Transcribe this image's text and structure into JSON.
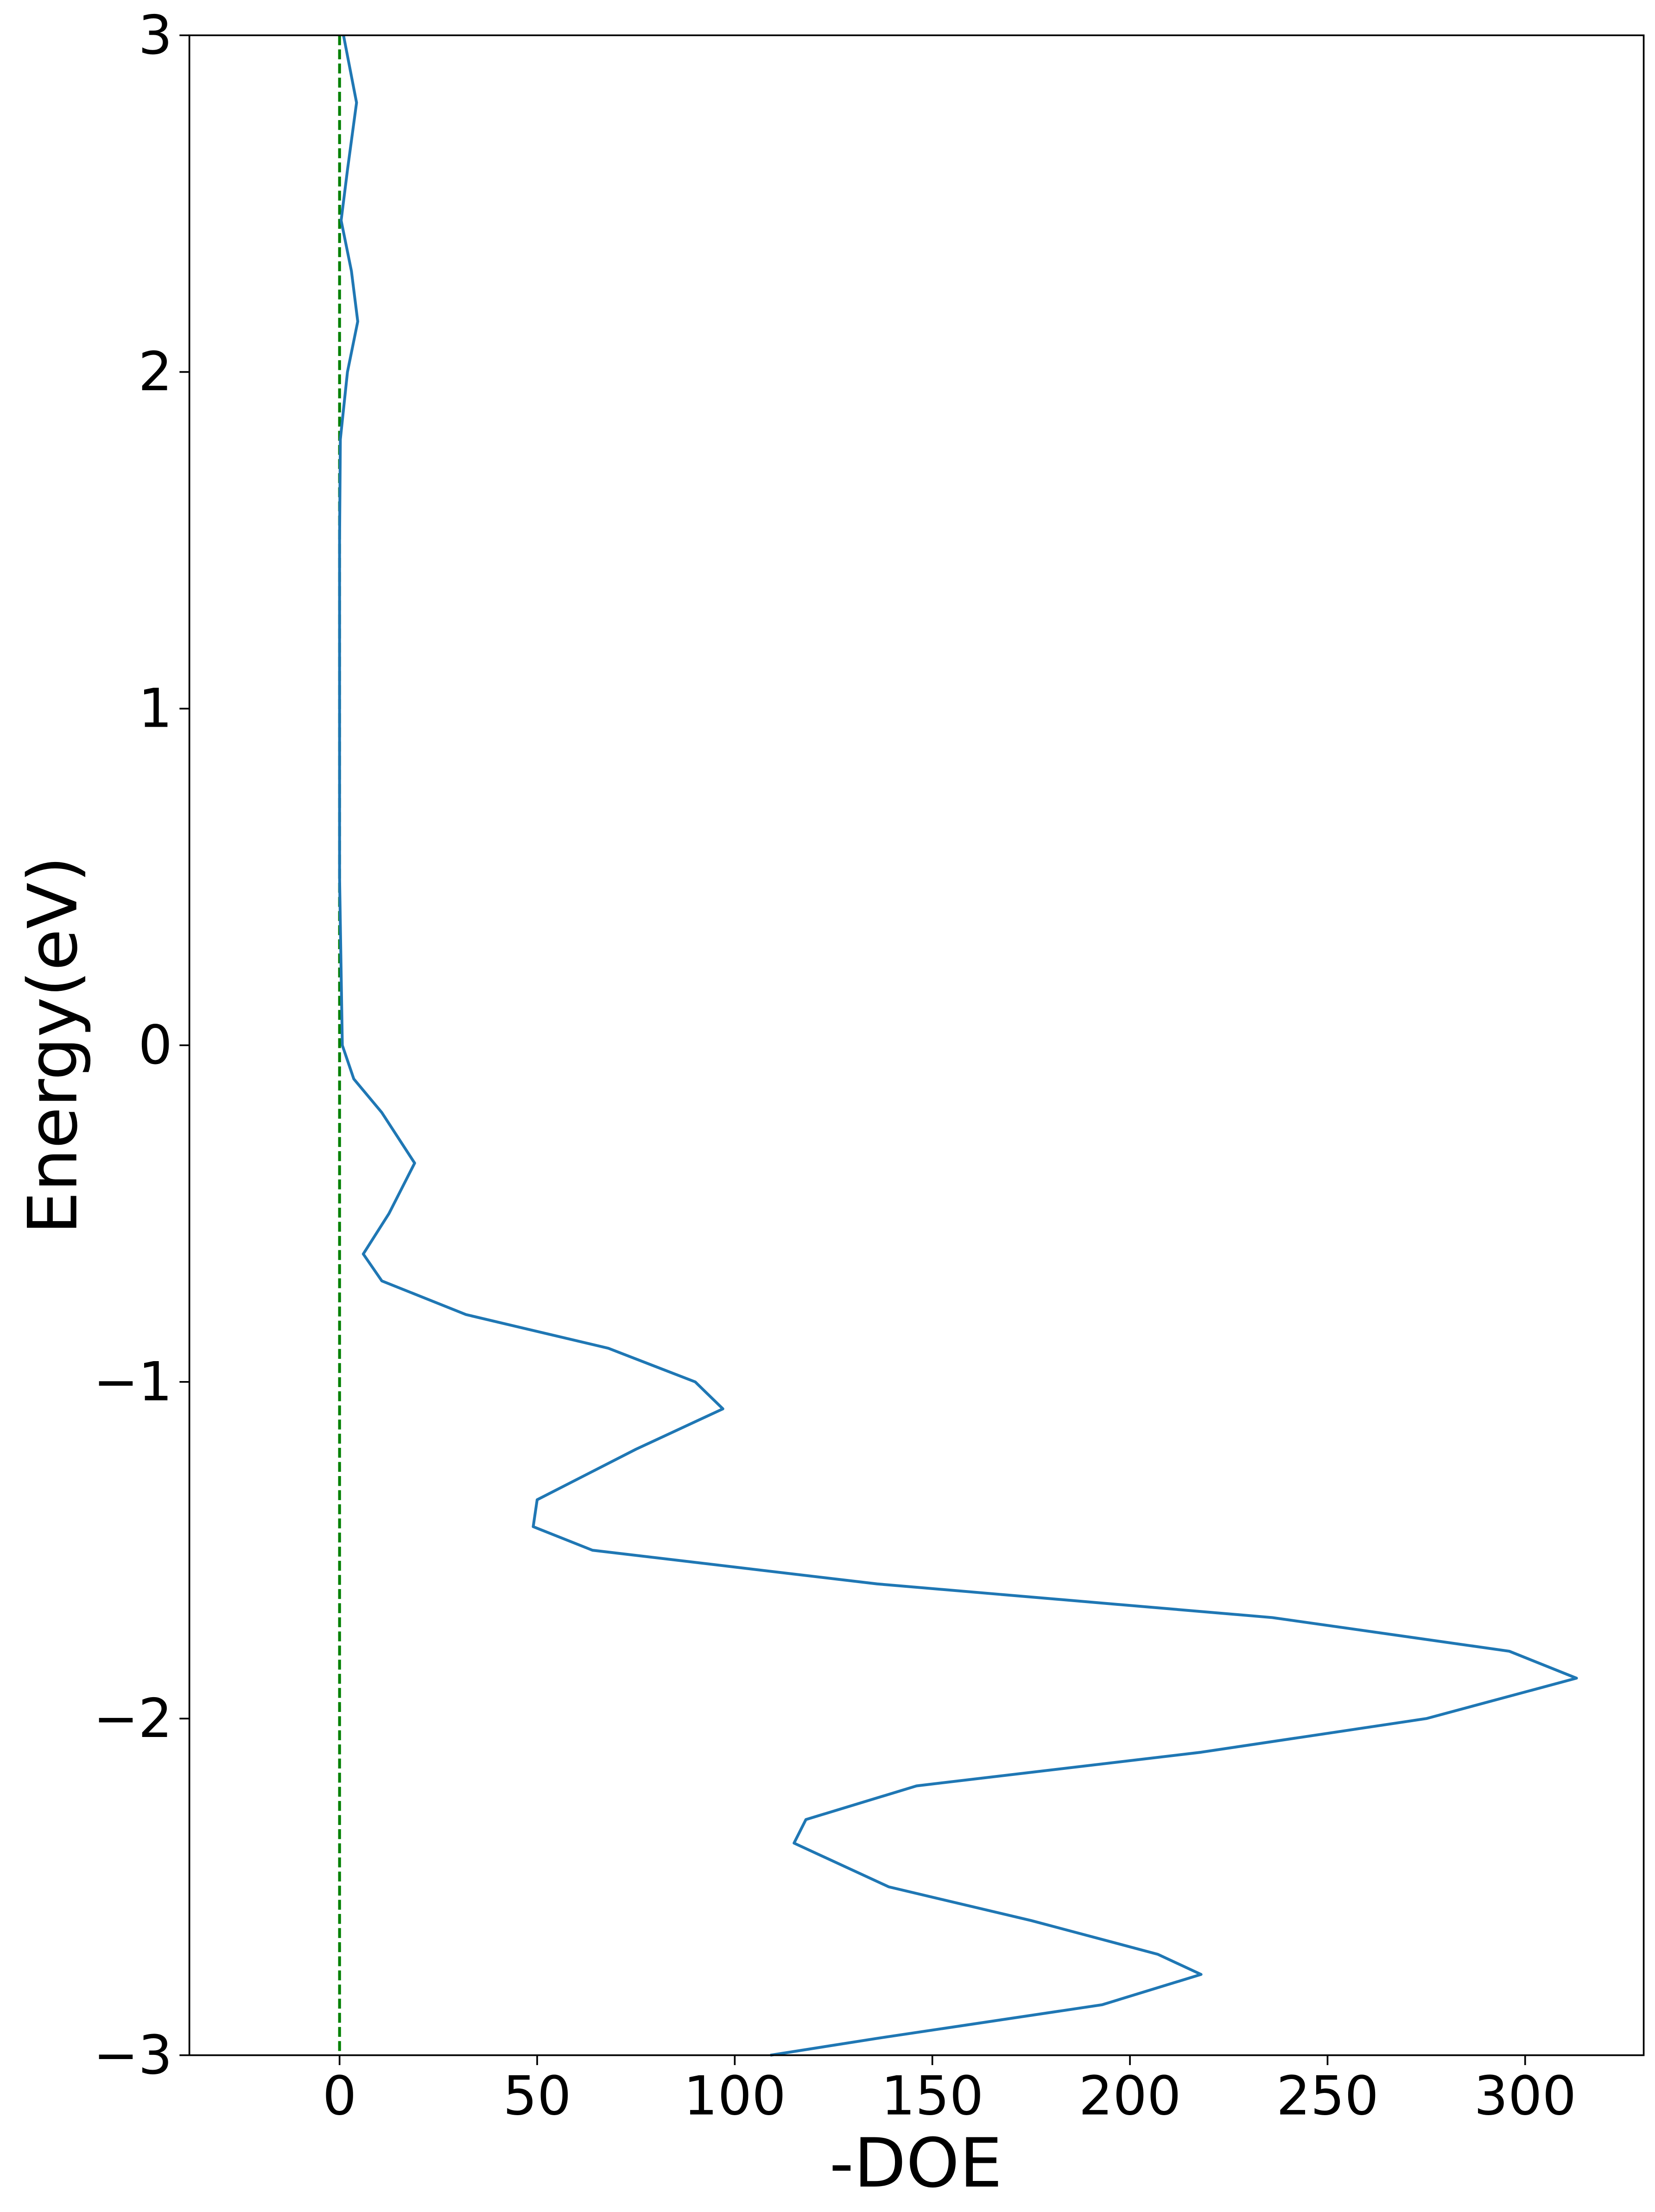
{
  "chart_data": {
    "type": "line",
    "x_label": "-DOE",
    "y_label": "Energy(eV)",
    "x": [
      1,
      4.3,
      2,
      0.4,
      3,
      4.6,
      2,
      0.2,
      0,
      0,
      0,
      0.7,
      3.6,
      10.7,
      19,
      12.5,
      6,
      10.7,
      32,
      68,
      90,
      97,
      75,
      50,
      49,
      64,
      136,
      236,
      296,
      313,
      275,
      218,
      146,
      118,
      115,
      139,
      175,
      207,
      218,
      193,
      136,
      109
    ],
    "series": [
      {
        "color": "#1f77b4",
        "values": [
          3,
          2.8,
          2.6,
          2.45,
          2.3,
          2.15,
          2.0,
          1.8,
          1.5,
          1.0,
          0.5,
          0,
          -0.1,
          -0.2,
          -0.35,
          -0.5,
          -0.62,
          -0.7,
          -0.8,
          -0.9,
          -1.0,
          -1.08,
          -1.2,
          -1.35,
          -1.43,
          -1.5,
          -1.6,
          -1.7,
          -1.8,
          -1.88,
          -2.0,
          -2.1,
          -2.2,
          -2.3,
          -2.37,
          -2.5,
          -2.6,
          -2.7,
          -2.76,
          -2.85,
          -2.95,
          -3.0
        ]
      }
    ],
    "vline": {
      "x": 0,
      "color": "#008000",
      "style": "dashed"
    },
    "xlim": [
      -38,
      330
    ],
    "xticks": [
      0,
      50,
      100,
      150,
      200,
      250,
      300
    ],
    "ylim": [
      -3,
      3
    ],
    "yticks": [
      {
        "value": -3,
        "label": "−3"
      },
      {
        "value": -2,
        "label": "−2"
      },
      {
        "value": -1,
        "label": "−1"
      },
      0,
      1,
      2,
      3
    ],
    "grid": false
  }
}
